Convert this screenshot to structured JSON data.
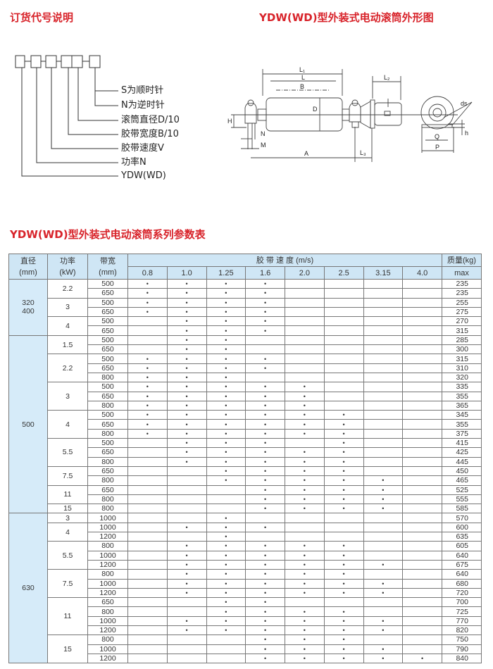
{
  "order_code": {
    "title": "订货代号说明",
    "labels": [
      "S为顺时针",
      "N为逆时针",
      "滚筒直径D/10",
      "胶带宽度B/10",
      "胶带速度V",
      "功率N",
      "YDW(WD)"
    ]
  },
  "outline": {
    "title": "YDW(WD)型外装式电动滚筒外形图",
    "dims": {
      "L1": "L₁",
      "L": "L",
      "B": "B",
      "D": "D",
      "L2": "L₂",
      "H": "H",
      "N": "N",
      "M": "M",
      "A": "A",
      "L3": "L₃",
      "ds": "ds",
      "h": "h",
      "Q": "Q",
      "P": "P"
    }
  },
  "table": {
    "title": "YDW(WD)型外装式电动滚筒系列参数表",
    "headers": {
      "diameter": "直径",
      "diameter_unit": "(mm)",
      "power": "功率",
      "power_unit": "(kW)",
      "width": "带宽",
      "width_unit": "(mm)",
      "speed": "胶 带 速 度 (m/s)",
      "mass": "质量(kg)",
      "mass_unit": "max"
    },
    "speeds": [
      "0.8",
      "1.0",
      "1.25",
      "1.6",
      "2.0",
      "2.5",
      "3.15",
      "4.0"
    ],
    "mark": "•",
    "groups": [
      {
        "diameter": [
          "320",
          "400"
        ],
        "powers": [
          {
            "power": "2.2",
            "rows": [
              {
                "width": "500",
                "s": [
                  1,
                  1,
                  1,
                  1,
                  0,
                  0,
                  0,
                  0
                ],
                "mass": "235"
              },
              {
                "width": "650",
                "s": [
                  1,
                  1,
                  1,
                  1,
                  0,
                  0,
                  0,
                  0
                ],
                "mass": "235"
              }
            ]
          },
          {
            "power": "3",
            "rows": [
              {
                "width": "500",
                "s": [
                  1,
                  1,
                  1,
                  1,
                  0,
                  0,
                  0,
                  0
                ],
                "mass": "255"
              },
              {
                "width": "650",
                "s": [
                  1,
                  1,
                  1,
                  1,
                  0,
                  0,
                  0,
                  0
                ],
                "mass": "275"
              }
            ]
          },
          {
            "power": "4",
            "rows": [
              {
                "width": "500",
                "s": [
                  0,
                  1,
                  1,
                  1,
                  0,
                  0,
                  0,
                  0
                ],
                "mass": "270"
              },
              {
                "width": "650",
                "s": [
                  0,
                  1,
                  1,
                  1,
                  0,
                  0,
                  0,
                  0
                ],
                "mass": "315"
              }
            ]
          }
        ]
      },
      {
        "diameter": [
          "500"
        ],
        "powers": [
          {
            "power": "1.5",
            "rows": [
              {
                "width": "500",
                "s": [
                  0,
                  1,
                  1,
                  0,
                  0,
                  0,
                  0,
                  0
                ],
                "mass": "285"
              },
              {
                "width": "650",
                "s": [
                  0,
                  1,
                  1,
                  0,
                  0,
                  0,
                  0,
                  0
                ],
                "mass": "300"
              }
            ]
          },
          {
            "power": "2.2",
            "rows": [
              {
                "width": "500",
                "s": [
                  1,
                  1,
                  1,
                  1,
                  0,
                  0,
                  0,
                  0
                ],
                "mass": "315"
              },
              {
                "width": "650",
                "s": [
                  1,
                  1,
                  1,
                  1,
                  0,
                  0,
                  0,
                  0
                ],
                "mass": "310"
              },
              {
                "width": "800",
                "s": [
                  1,
                  1,
                  1,
                  0,
                  0,
                  0,
                  0,
                  0
                ],
                "mass": "320"
              }
            ]
          },
          {
            "power": "3",
            "rows": [
              {
                "width": "500",
                "s": [
                  1,
                  1,
                  1,
                  1,
                  1,
                  0,
                  0,
                  0
                ],
                "mass": "335"
              },
              {
                "width": "650",
                "s": [
                  1,
                  1,
                  1,
                  1,
                  1,
                  0,
                  0,
                  0
                ],
                "mass": "355"
              },
              {
                "width": "800",
                "s": [
                  1,
                  1,
                  1,
                  1,
                  1,
                  0,
                  0,
                  0
                ],
                "mass": "365"
              }
            ]
          },
          {
            "power": "4",
            "rows": [
              {
                "width": "500",
                "s": [
                  1,
                  1,
                  1,
                  1,
                  1,
                  1,
                  0,
                  0
                ],
                "mass": "345"
              },
              {
                "width": "650",
                "s": [
                  1,
                  1,
                  1,
                  1,
                  1,
                  1,
                  0,
                  0
                ],
                "mass": "355"
              },
              {
                "width": "800",
                "s": [
                  1,
                  1,
                  1,
                  1,
                  1,
                  1,
                  0,
                  0
                ],
                "mass": "375"
              }
            ]
          },
          {
            "power": "5.5",
            "rows": [
              {
                "width": "500",
                "s": [
                  0,
                  1,
                  1,
                  1,
                  0,
                  1,
                  0,
                  0
                ],
                "mass": "415"
              },
              {
                "width": "650",
                "s": [
                  0,
                  1,
                  1,
                  1,
                  1,
                  1,
                  0,
                  0
                ],
                "mass": "425"
              },
              {
                "width": "800",
                "s": [
                  0,
                  1,
                  1,
                  1,
                  1,
                  1,
                  0,
                  0
                ],
                "mass": "445"
              }
            ]
          },
          {
            "power": "7.5",
            "rows": [
              {
                "width": "650",
                "s": [
                  0,
                  0,
                  1,
                  1,
                  1,
                  1,
                  0,
                  0
                ],
                "mass": "450"
              },
              {
                "width": "800",
                "s": [
                  0,
                  0,
                  1,
                  1,
                  1,
                  1,
                  1,
                  0
                ],
                "mass": "465"
              }
            ]
          },
          {
            "power": "11",
            "rows": [
              {
                "width": "650",
                "s": [
                  0,
                  0,
                  0,
                  1,
                  1,
                  1,
                  1,
                  0
                ],
                "mass": "525"
              },
              {
                "width": "800",
                "s": [
                  0,
                  0,
                  0,
                  1,
                  1,
                  1,
                  1,
                  0
                ],
                "mass": "555"
              }
            ]
          },
          {
            "power": "15",
            "rows": [
              {
                "width": "800",
                "s": [
                  0,
                  0,
                  0,
                  1,
                  1,
                  1,
                  1,
                  0
                ],
                "mass": "585"
              }
            ]
          }
        ]
      },
      {
        "diameter": [
          "630"
        ],
        "powers": [
          {
            "power": "3",
            "rows": [
              {
                "width": "1000",
                "s": [
                  0,
                  0,
                  1,
                  0,
                  0,
                  0,
                  0,
                  0
                ],
                "mass": "570"
              }
            ]
          },
          {
            "power": "4",
            "rows": [
              {
                "width": "1000",
                "s": [
                  0,
                  1,
                  1,
                  1,
                  0,
                  0,
                  0,
                  0
                ],
                "mass": "600"
              },
              {
                "width": "1200",
                "s": [
                  0,
                  0,
                  1,
                  0,
                  0,
                  0,
                  0,
                  0
                ],
                "mass": "635"
              }
            ]
          },
          {
            "power": "5.5",
            "rows": [
              {
                "width": "800",
                "s": [
                  0,
                  1,
                  1,
                  1,
                  1,
                  1,
                  0,
                  0
                ],
                "mass": "605"
              },
              {
                "width": "1000",
                "s": [
                  0,
                  1,
                  1,
                  1,
                  1,
                  1,
                  0,
                  0
                ],
                "mass": "640"
              },
              {
                "width": "1200",
                "s": [
                  0,
                  1,
                  1,
                  1,
                  1,
                  1,
                  1,
                  0
                ],
                "mass": "675"
              }
            ]
          },
          {
            "power": "7.5",
            "rows": [
              {
                "width": "800",
                "s": [
                  0,
                  1,
                  1,
                  1,
                  1,
                  1,
                  0,
                  0
                ],
                "mass": "640"
              },
              {
                "width": "1000",
                "s": [
                  0,
                  1,
                  1,
                  1,
                  1,
                  1,
                  1,
                  0
                ],
                "mass": "680"
              },
              {
                "width": "1200",
                "s": [
                  0,
                  1,
                  1,
                  1,
                  1,
                  1,
                  1,
                  0
                ],
                "mass": "720"
              }
            ]
          },
          {
            "power": "11",
            "rows": [
              {
                "width": "650",
                "s": [
                  0,
                  0,
                  1,
                  1,
                  0,
                  0,
                  0,
                  0
                ],
                "mass": "700"
              },
              {
                "width": "800",
                "s": [
                  0,
                  0,
                  1,
                  1,
                  1,
                  1,
                  0,
                  0
                ],
                "mass": "725"
              },
              {
                "width": "1000",
                "s": [
                  0,
                  1,
                  1,
                  1,
                  1,
                  1,
                  1,
                  0
                ],
                "mass": "770"
              },
              {
                "width": "1200",
                "s": [
                  0,
                  1,
                  1,
                  1,
                  1,
                  1,
                  1,
                  0
                ],
                "mass": "820"
              }
            ]
          },
          {
            "power": "15",
            "rows": [
              {
                "width": "800",
                "s": [
                  0,
                  0,
                  0,
                  1,
                  1,
                  1,
                  0,
                  0
                ],
                "mass": "750"
              },
              {
                "width": "1000",
                "s": [
                  0,
                  0,
                  0,
                  1,
                  1,
                  1,
                  1,
                  0
                ],
                "mass": "790"
              },
              {
                "width": "1200",
                "s": [
                  0,
                  0,
                  0,
                  1,
                  1,
                  1,
                  1,
                  1
                ],
                "mass": "840"
              }
            ]
          }
        ]
      }
    ]
  },
  "colors": {
    "title_red": "#d8232a",
    "header_blue": "#cfe6f5",
    "diameter_blue": "#d6ebf9"
  }
}
